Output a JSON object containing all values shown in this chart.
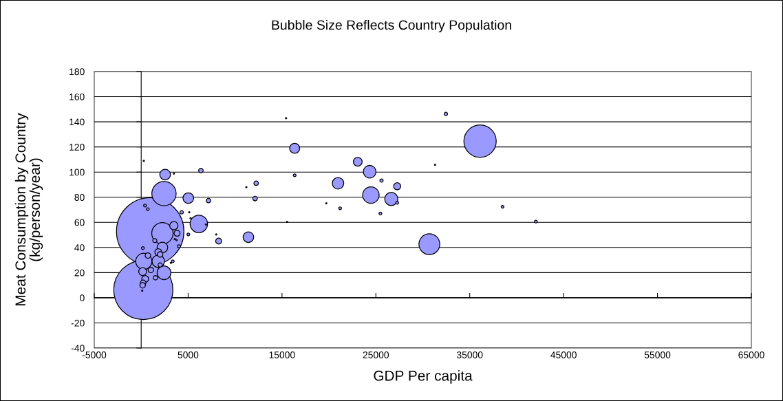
{
  "chart_data": {
    "type": "bubble",
    "title": "Bubble Size Reflects Country Population",
    "xlabel": "GDP Per capita",
    "ylabel": "Meat Consumption by Country\n(kg/person/year)",
    "xlim": [
      -5000,
      65000
    ],
    "xticks": [
      -5000,
      5000,
      15000,
      25000,
      35000,
      45000,
      55000,
      65000
    ],
    "ylim": [
      -40,
      180
    ],
    "yticks": [
      -40,
      -20,
      0,
      20,
      40,
      60,
      80,
      100,
      120,
      140,
      160,
      180
    ],
    "grid": "y",
    "marker": "circle",
    "series": [
      {
        "color": "#9999ff",
        "x": [
          960,
          226,
          36100,
          2430,
          2260,
          30700,
          6140,
          24470,
          278,
          2430,
          26640,
          24340,
          1820,
          20970,
          2550,
          5020,
          11420,
          2260,
          16350,
          21190,
          23070,
          3480,
          153,
          27270,
          424,
          1820,
          3820,
          8250,
          1520,
          1030,
          717,
          204,
          153,
          2015,
          6360,
          7170,
          12250,
          12130,
          1450,
          2015,
          4310,
          4020,
          32460,
          25600,
          16350,
          402,
          696,
          5020,
          3360,
          27270,
          25480,
          38500,
          42040,
          109,
          3480,
          15430,
          15550,
          11200,
          19720,
          278,
          5120,
          5260,
          6900,
          8000,
          3580,
          3770,
          182,
          3160,
          31310
        ],
        "values": [
          52.8,
          6.2,
          124.6,
          82.9,
          51.3,
          42.6,
          58.8,
          81.7,
          29,
          19.9,
          78.6,
          100.3,
          29,
          91.1,
          98,
          79.3,
          48.2,
          40,
          118.9,
          71.2,
          108.2,
          57.4,
          20.8,
          88.7,
          15,
          36.3,
          51.3,
          45.1,
          15.9,
          22.1,
          33.6,
          11.9,
          9.9,
          34.5,
          101.2,
          77.3,
          91.1,
          78.9,
          45.5,
          26.1,
          68,
          40.9,
          146.3,
          93.3,
          97.4,
          73.4,
          70.5,
          50.4,
          29,
          75.5,
          67,
          72.4,
          60.6,
          5.6,
          98.8,
          142.9,
          60.4,
          88,
          75.1,
          108.9,
          68,
          63.2,
          58.3,
          50.4,
          46.7,
          45.9,
          39.5,
          27.8,
          105.8
        ],
        "sizes": [
          1,
          0.77,
          0.23,
          0.13,
          0.1,
          0.096,
          0.067,
          0.06,
          0.057,
          0.042,
          0.038,
          0.035,
          0.034,
          0.029,
          0.025,
          0.025,
          0.025,
          0.025,
          0.022,
          0.0017,
          0.017,
          0.015,
          0.0135,
          0.011,
          0.0104,
          0.0104,
          0.0077,
          0.0077,
          0.0045,
          0.0067,
          0.0067,
          0.0067,
          0.0067,
          0.0067,
          0.0045,
          0.0045,
          0.0045,
          0.0045,
          0.0037,
          0.0037,
          0.0026,
          0.0022,
          0.0024,
          0.0024,
          0.0017,
          0.0017,
          0.0017,
          0.0017,
          0.0017,
          0.0017,
          0.0017,
          0.0017,
          0.0017,
          0.0004,
          0.0004,
          0.0004,
          0.0004,
          0.0004,
          0.0004,
          0.0004,
          0.0004,
          0.0004,
          0.0004,
          0.0004,
          0.0004,
          0.0004,
          0.0017,
          0.0004,
          0.0004
        ]
      }
    ]
  }
}
